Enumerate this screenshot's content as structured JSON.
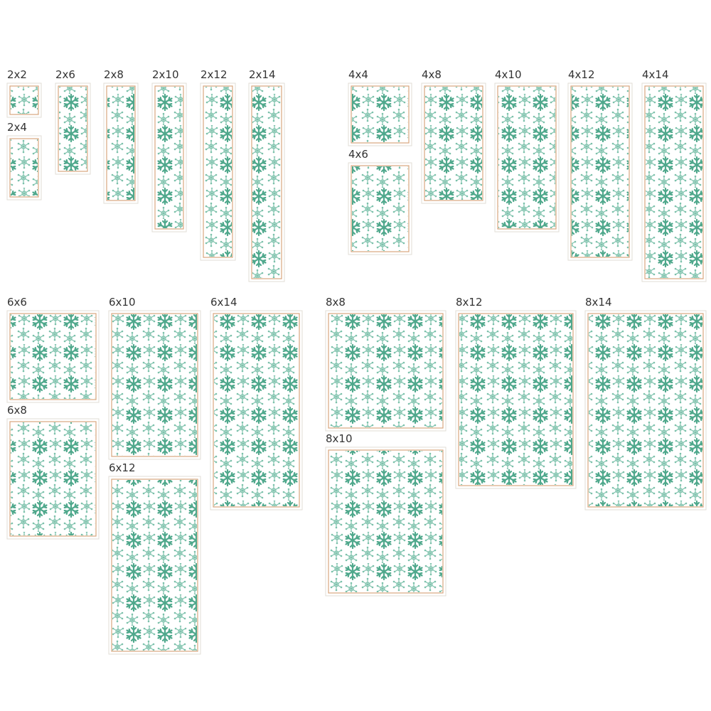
{
  "sizes": [
    "2x2",
    "2x4",
    "2x6",
    "2x8",
    "2x10",
    "2x12",
    "2x14",
    "4x4",
    "4x6",
    "4x8",
    "4x10",
    "4x12",
    "4x14",
    "6x6",
    "6x8",
    "6x10",
    "6x12",
    "6x14",
    "8x8",
    "8x10",
    "8x12",
    "8x14"
  ]
}
